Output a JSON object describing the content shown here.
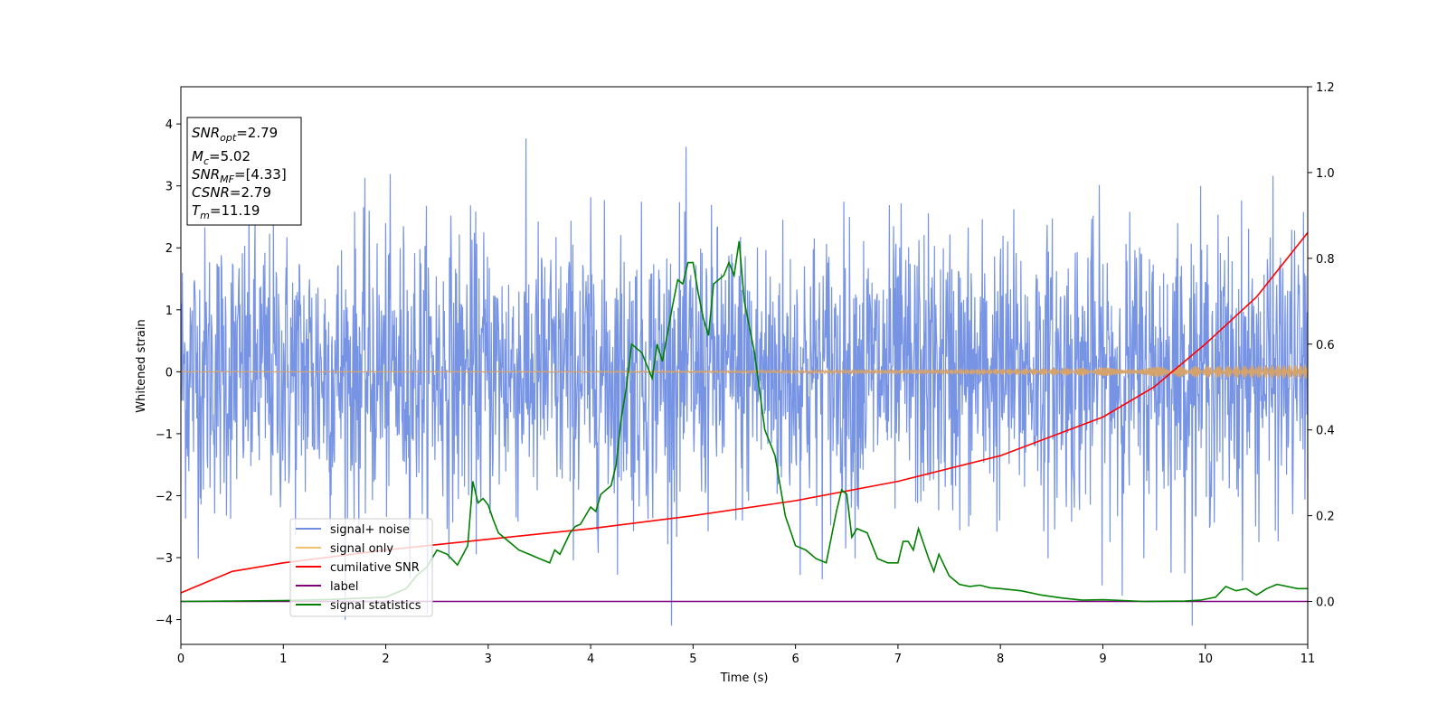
{
  "chart_data": {
    "type": "line",
    "xlabel": "Time (s)",
    "ylabel": "Whitened strain",
    "xlim": [
      0,
      11
    ],
    "ylim_left": [
      -4.4,
      4.6
    ],
    "ylim_right": [
      -0.1,
      1.2
    ],
    "x_ticks": [
      "0",
      "1",
      "2",
      "3",
      "4",
      "5",
      "6",
      "7",
      "8",
      "9",
      "10",
      "11"
    ],
    "y_left_ticks": [
      "−4",
      "−3",
      "−2",
      "−1",
      "0",
      "1",
      "2",
      "3",
      "4"
    ],
    "y_right_ticks": [
      "0.0",
      "0.2",
      "0.4",
      "0.6",
      "0.8",
      "1.0",
      "1.2"
    ],
    "info_box": {
      "snr_opt": {
        "base": "SNR",
        "sub": "opt",
        "value": "=2.79"
      },
      "mc": {
        "base": "M",
        "sub": "c",
        "value": "=5.02"
      },
      "snr_mf": {
        "base": "SNR",
        "sub": "MF",
        "value": "=[4.33]"
      },
      "csnr": {
        "base": "CSNR",
        "value": "=2.79"
      },
      "tm": {
        "base": "T",
        "sub": "m",
        "value": "=11.19"
      }
    },
    "legend": {
      "placement": "lower-left",
      "entries": [
        {
          "label": "signal+ noise",
          "color": "#6f8de3"
        },
        {
          "label": "signal only",
          "color": "#f5c26b"
        },
        {
          "label": "cumilative SNR",
          "color": "#ff0000"
        },
        {
          "label": "label",
          "color": "#800080"
        },
        {
          "label": "signal statistics",
          "color": "#008000"
        }
      ]
    },
    "series": [
      {
        "name": "signal+ noise",
        "axis": "left",
        "color": "#6f8de3",
        "description_values": {
          "noise_sigma": 1.0,
          "x_range": [
            0,
            11
          ]
        }
      },
      {
        "name": "signal only",
        "axis": "left",
        "color": "#d6a36a",
        "amplitude_start": 0.005,
        "amplitude_end": 0.12
      },
      {
        "name": "cumilative SNR",
        "axis": "right",
        "color": "#ff0000",
        "x": [
          0,
          0.5,
          1,
          2,
          3,
          4,
          5,
          6,
          7,
          8,
          9,
          9.5,
          10,
          10.5,
          11
        ],
        "y": [
          0.02,
          0.07,
          0.09,
          0.12,
          0.145,
          0.17,
          0.2,
          0.235,
          0.28,
          0.34,
          0.43,
          0.5,
          0.6,
          0.71,
          0.86
        ]
      },
      {
        "name": "label",
        "axis": "right",
        "color": "#800080",
        "x": [
          0,
          11
        ],
        "y": [
          0,
          0
        ]
      },
      {
        "name": "signal statistics",
        "axis": "right",
        "color": "#008000",
        "x": [
          0,
          0.5,
          1,
          1.5,
          2,
          2.2,
          2.3,
          2.4,
          2.5,
          2.6,
          2.7,
          2.8,
          2.85,
          2.9,
          2.95,
          3.0,
          3.05,
          3.1,
          3.2,
          3.3,
          3.4,
          3.5,
          3.6,
          3.65,
          3.7,
          3.8,
          3.85,
          3.9,
          3.95,
          4.0,
          4.05,
          4.1,
          4.2,
          4.25,
          4.3,
          4.35,
          4.4,
          4.5,
          4.55,
          4.6,
          4.65,
          4.7,
          4.8,
          4.85,
          4.9,
          4.95,
          5.0,
          5.05,
          5.1,
          5.15,
          5.2,
          5.3,
          5.35,
          5.4,
          5.45,
          5.5,
          5.6,
          5.7,
          5.8,
          5.9,
          6.0,
          6.1,
          6.2,
          6.3,
          6.4,
          6.45,
          6.5,
          6.55,
          6.6,
          6.7,
          6.8,
          6.9,
          7.0,
          7.05,
          7.1,
          7.15,
          7.2,
          7.3,
          7.35,
          7.4,
          7.5,
          7.6,
          7.7,
          7.8,
          7.9,
          8.0,
          8.2,
          8.4,
          8.6,
          8.8,
          9.0,
          9.4,
          9.8,
          9.95,
          10.1,
          10.2,
          10.3,
          10.4,
          10.5,
          10.6,
          10.7,
          10.8,
          10.9,
          11.0
        ],
        "y": [
          0.0,
          0.001,
          0.002,
          0.005,
          0.01,
          0.03,
          0.06,
          0.08,
          0.12,
          0.11,
          0.085,
          0.13,
          0.28,
          0.23,
          0.24,
          0.225,
          0.19,
          0.16,
          0.14,
          0.12,
          0.11,
          0.1,
          0.09,
          0.12,
          0.11,
          0.16,
          0.175,
          0.18,
          0.2,
          0.22,
          0.21,
          0.25,
          0.27,
          0.32,
          0.43,
          0.5,
          0.6,
          0.58,
          0.55,
          0.52,
          0.6,
          0.56,
          0.69,
          0.75,
          0.74,
          0.79,
          0.79,
          0.72,
          0.66,
          0.62,
          0.74,
          0.76,
          0.79,
          0.76,
          0.84,
          0.7,
          0.58,
          0.4,
          0.34,
          0.2,
          0.13,
          0.12,
          0.1,
          0.09,
          0.21,
          0.26,
          0.25,
          0.15,
          0.17,
          0.16,
          0.1,
          0.09,
          0.09,
          0.14,
          0.14,
          0.12,
          0.17,
          0.1,
          0.07,
          0.11,
          0.06,
          0.04,
          0.035,
          0.038,
          0.032,
          0.03,
          0.025,
          0.015,
          0.008,
          0.003,
          0.004,
          0.0,
          0.001,
          0.003,
          0.01,
          0.035,
          0.025,
          0.03,
          0.015,
          0.03,
          0.04,
          0.035,
          0.03,
          0.03
        ]
      }
    ]
  }
}
